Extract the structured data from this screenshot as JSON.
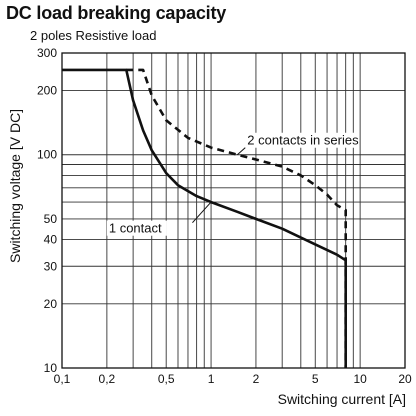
{
  "chart_data": {
    "type": "line",
    "title": "DC load breaking capacity",
    "subtitle": "2 poles Resistive load",
    "xlabel": "Switching current [A]",
    "ylabel": "Switching voltage [V DC]",
    "xscale": "log",
    "yscale": "log",
    "xlim": [
      0.1,
      20
    ],
    "ylim": [
      10,
      300
    ],
    "grid": true,
    "x_tick_labels": [
      "0,1",
      "0,2",
      "0,5",
      "1",
      "2",
      "5",
      "10",
      "20"
    ],
    "y_tick_labels": [
      "10",
      "20",
      "30",
      "40",
      "50",
      "100",
      "200",
      "300"
    ],
    "series": [
      {
        "name": "1 contact",
        "style": "solid",
        "color": "#111111",
        "points": [
          [
            0.1,
            250
          ],
          [
            0.27,
            250
          ],
          [
            0.3,
            180
          ],
          [
            0.35,
            130
          ],
          [
            0.4,
            105
          ],
          [
            0.5,
            82
          ],
          [
            0.6,
            72
          ],
          [
            0.8,
            64
          ],
          [
            1,
            60
          ],
          [
            1.5,
            54
          ],
          [
            2,
            50
          ],
          [
            3,
            45
          ],
          [
            5,
            38
          ],
          [
            7,
            34
          ],
          [
            8,
            32
          ],
          [
            8,
            10
          ]
        ]
      },
      {
        "name": "2 contacts in series",
        "style": "dashed",
        "color": "#111111",
        "points": [
          [
            0.27,
            250
          ],
          [
            0.35,
            250
          ],
          [
            0.4,
            190
          ],
          [
            0.5,
            145
          ],
          [
            0.7,
            120
          ],
          [
            1,
            108
          ],
          [
            1.5,
            100
          ],
          [
            2,
            95
          ],
          [
            3,
            88
          ],
          [
            4,
            80
          ],
          [
            5,
            72
          ],
          [
            6,
            65
          ],
          [
            7,
            58
          ],
          [
            8,
            55
          ],
          [
            8,
            10
          ]
        ]
      }
    ],
    "annotations": [
      {
        "text": "2 contacts in series",
        "target": "2 contacts in series"
      },
      {
        "text": "1 contact",
        "target": "1 contact"
      }
    ]
  }
}
